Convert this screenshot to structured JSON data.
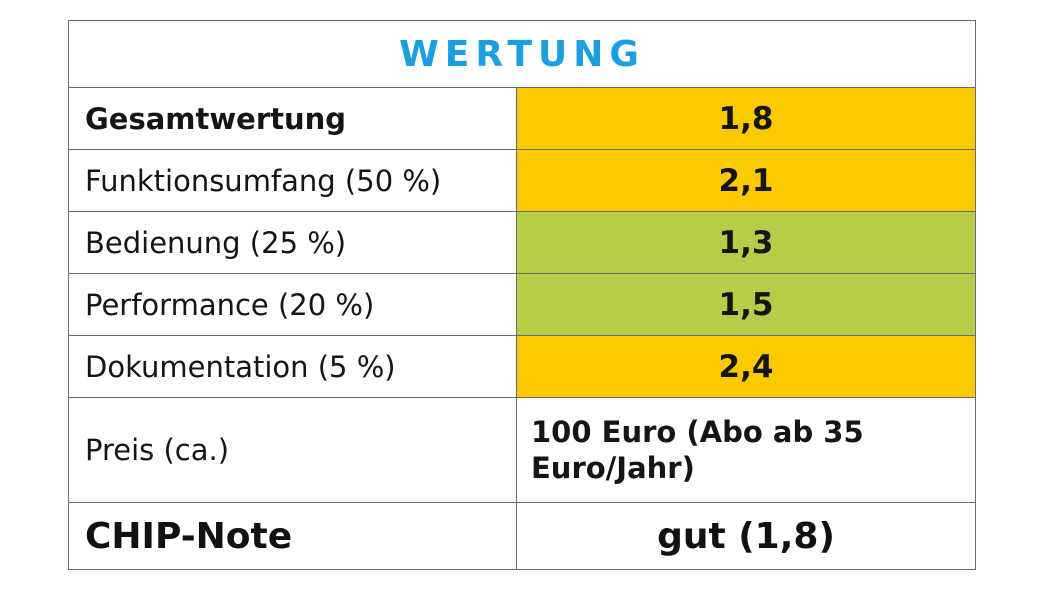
{
  "title": "WERTUNG",
  "colors": {
    "title": "#1a9fe0",
    "orange": "#fbc900",
    "green": "#b7cc48",
    "border": "#6b6b6b"
  },
  "rows": [
    {
      "label": "Gesamtwertung",
      "value": "1,8",
      "bold_label": true,
      "color": "#fbc900"
    },
    {
      "label": "Funktionsumfang (50 %)",
      "value": "2,1",
      "bold_label": false,
      "color": "#fbc900"
    },
    {
      "label": "Bedienung (25 %)",
      "value": "1,3",
      "bold_label": false,
      "color": "#b7cc48"
    },
    {
      "label": "Performance (20 %)",
      "value": "1,5",
      "bold_label": false,
      "color": "#b7cc48"
    },
    {
      "label": "Dokumentation (5 %)",
      "value": "2,4",
      "bold_label": false,
      "color": "#fbc900"
    }
  ],
  "price": {
    "label": "Preis (ca.)",
    "line1": "100 Euro (Abo ab 35",
    "line2": "Euro/Jahr)"
  },
  "note": {
    "label": "CHIP-Note",
    "value": "gut (1,8)"
  }
}
